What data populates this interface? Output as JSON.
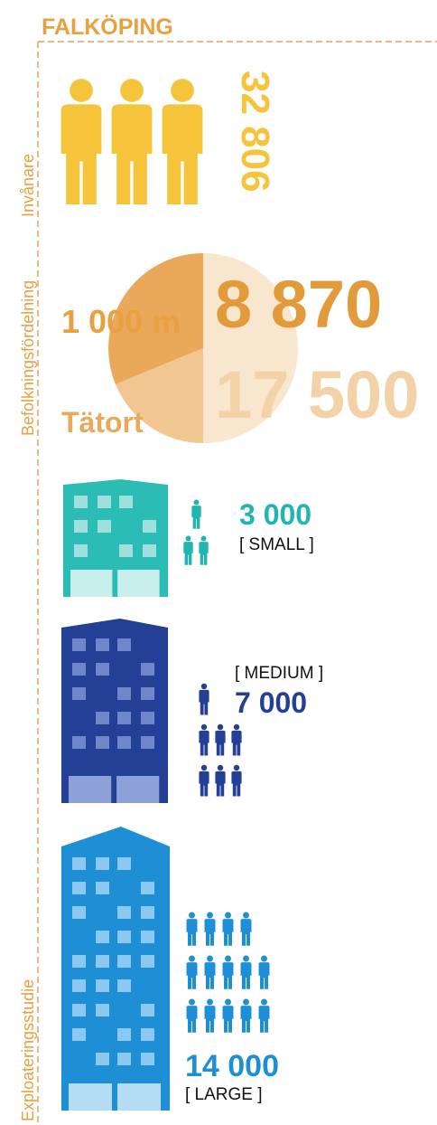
{
  "title": "FALKÖPING",
  "side_labels": [
    "Invånare",
    "Befolkningsfördelning",
    "Exploateringsstudie"
  ],
  "population": {
    "value": "32 806"
  },
  "distribution": {
    "radius_label": "1 000 m",
    "radius_value": "8 870",
    "urban_label": "Tätort",
    "urban_value": "17 500"
  },
  "scenarios": [
    {
      "value": "3 000",
      "size": "[ SMALL ]"
    },
    {
      "value": "7 000",
      "size": "[ MEDIUM ]"
    },
    {
      "value": "14 000",
      "size": "[ LARGE ]"
    }
  ]
}
